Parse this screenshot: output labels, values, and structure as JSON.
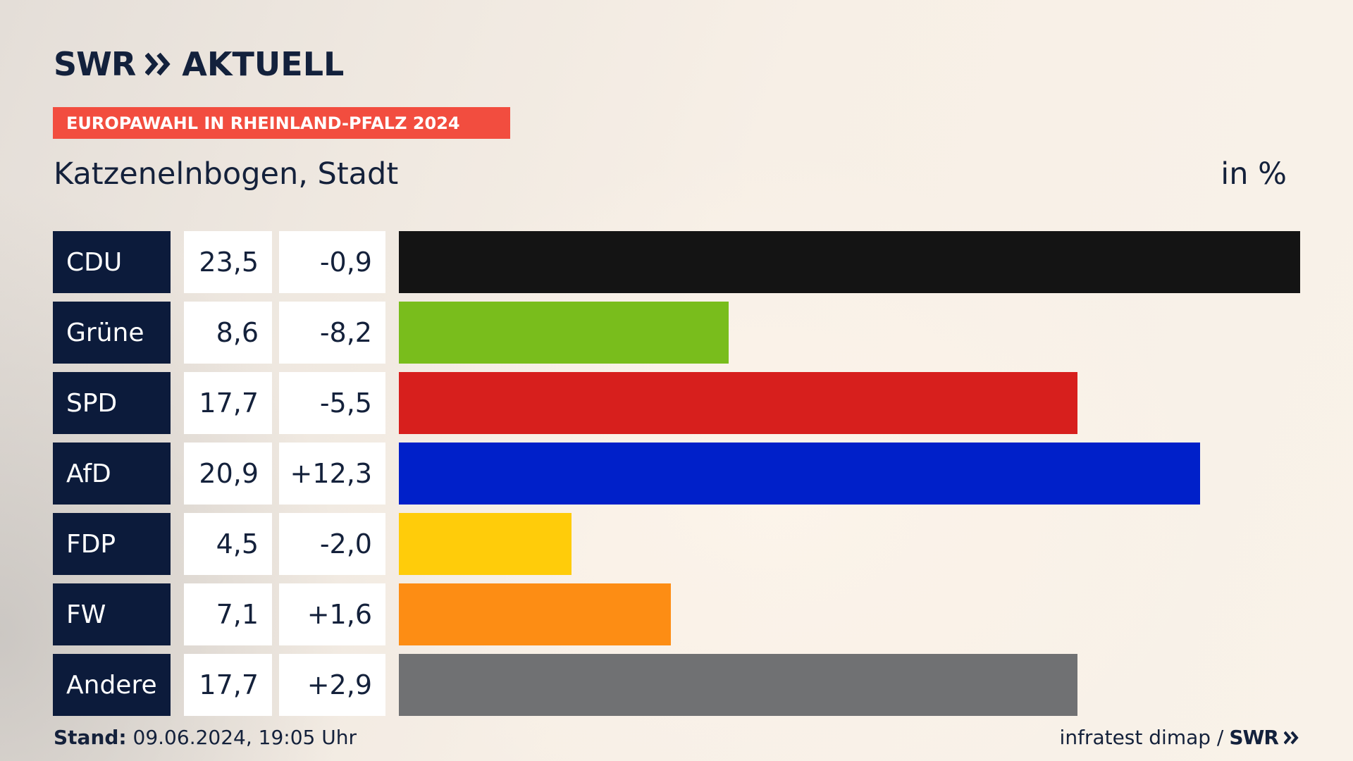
{
  "brand": {
    "logo_prefix": "SWR",
    "logo_word": "AKTUELL",
    "logo_chevron_icon": "double-chevron-right-icon",
    "color": "#13213c"
  },
  "banner": {
    "text": "EUROPAWAHL IN RHEINLAND-PFALZ 2024",
    "color": "#f24d3f"
  },
  "heading": {
    "place": "Katzenelnbogen, Stadt",
    "unit": "in %"
  },
  "chart_data": {
    "type": "bar",
    "orientation": "horizontal",
    "categories": [
      "CDU",
      "Grüne",
      "SPD",
      "AfD",
      "FDP",
      "FW",
      "Andere"
    ],
    "values": [
      23.5,
      8.6,
      17.7,
      20.9,
      4.5,
      7.1,
      17.7
    ],
    "value_labels": [
      "23,5",
      "8,6",
      "17,7",
      "20,9",
      "4,5",
      "7,1",
      "17,7"
    ],
    "diff_labels": [
      "-0,9",
      "-8,2",
      "-5,5",
      "+12,3",
      "-2,0",
      "+1,6",
      "+2,9"
    ],
    "colors": [
      "#141414",
      "#79bd1c",
      "#d71f1d",
      "#0020c9",
      "#ffcc0a",
      "#fd8d14",
      "#707173"
    ],
    "xlim": [
      0,
      23.5
    ],
    "grid": false,
    "legend": "none"
  },
  "footer": {
    "stand_label": "Stand:",
    "stand_value": "09.06.2024, 19:05 Uhr",
    "source": "infratest dimap /",
    "source_logo": "SWR",
    "source_chevron_icon": "double-chevron-right-icon"
  }
}
